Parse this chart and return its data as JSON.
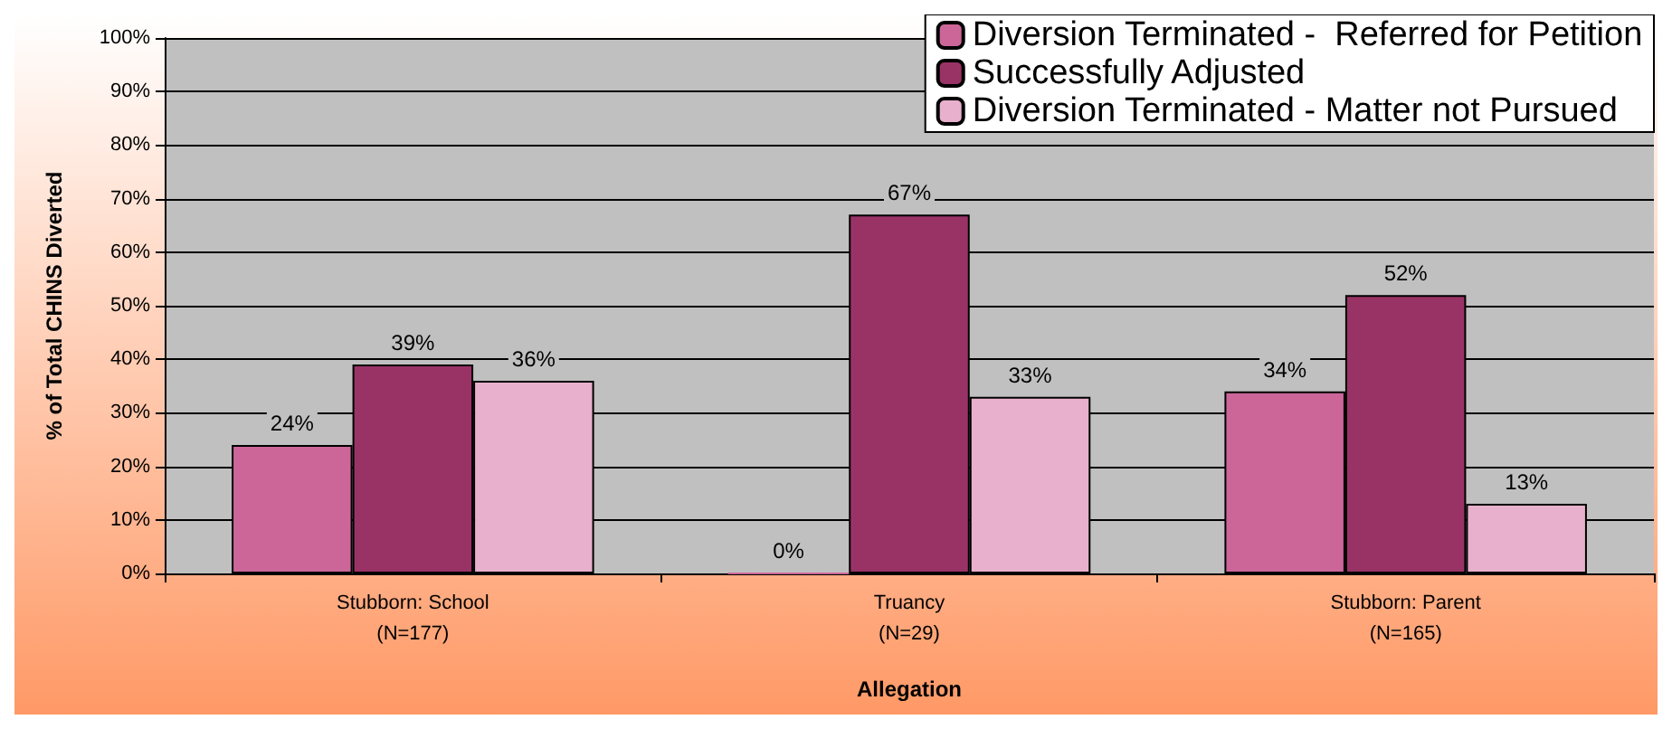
{
  "chart_data": {
    "type": "bar",
    "xlabel": "Allegation",
    "ylabel": "% of Total CHINS Diverted",
    "categories": [
      "Stubborn: School\n(N=177)",
      "Truancy\n(N=29)",
      "Stubborn: Parent\n(N=165)"
    ],
    "series": [
      {
        "name": "Diversion Terminated -  Referred for Petition",
        "color": "#cc6699",
        "values": [
          24,
          0,
          34
        ],
        "value_labels": [
          "24%",
          "0%",
          "34%"
        ]
      },
      {
        "name": "Successfully Adjusted",
        "color": "#993366",
        "values": [
          39,
          67,
          52
        ],
        "value_labels": [
          "39%",
          "67%",
          "52%"
        ]
      },
      {
        "name": "Diversion Terminated - Matter not Pursued",
        "color": "#e8b0cc",
        "values": [
          36,
          33,
          13
        ],
        "value_labels": [
          "36%",
          "33%",
          "13%"
        ]
      }
    ],
    "ylim": [
      0,
      100
    ],
    "yticks": [
      {
        "value": 0,
        "label": "0%"
      },
      {
        "value": 10,
        "label": "10%"
      },
      {
        "value": 20,
        "label": "20%"
      },
      {
        "value": 30,
        "label": "30%"
      },
      {
        "value": 40,
        "label": "40%"
      },
      {
        "value": 50,
        "label": "50%"
      },
      {
        "value": 60,
        "label": "60%"
      },
      {
        "value": 70,
        "label": "70%"
      },
      {
        "value": 80,
        "label": "80%"
      },
      {
        "value": 90,
        "label": "90%"
      },
      {
        "value": 100,
        "label": "100%"
      }
    ],
    "grid": "y",
    "legend": "top right"
  }
}
